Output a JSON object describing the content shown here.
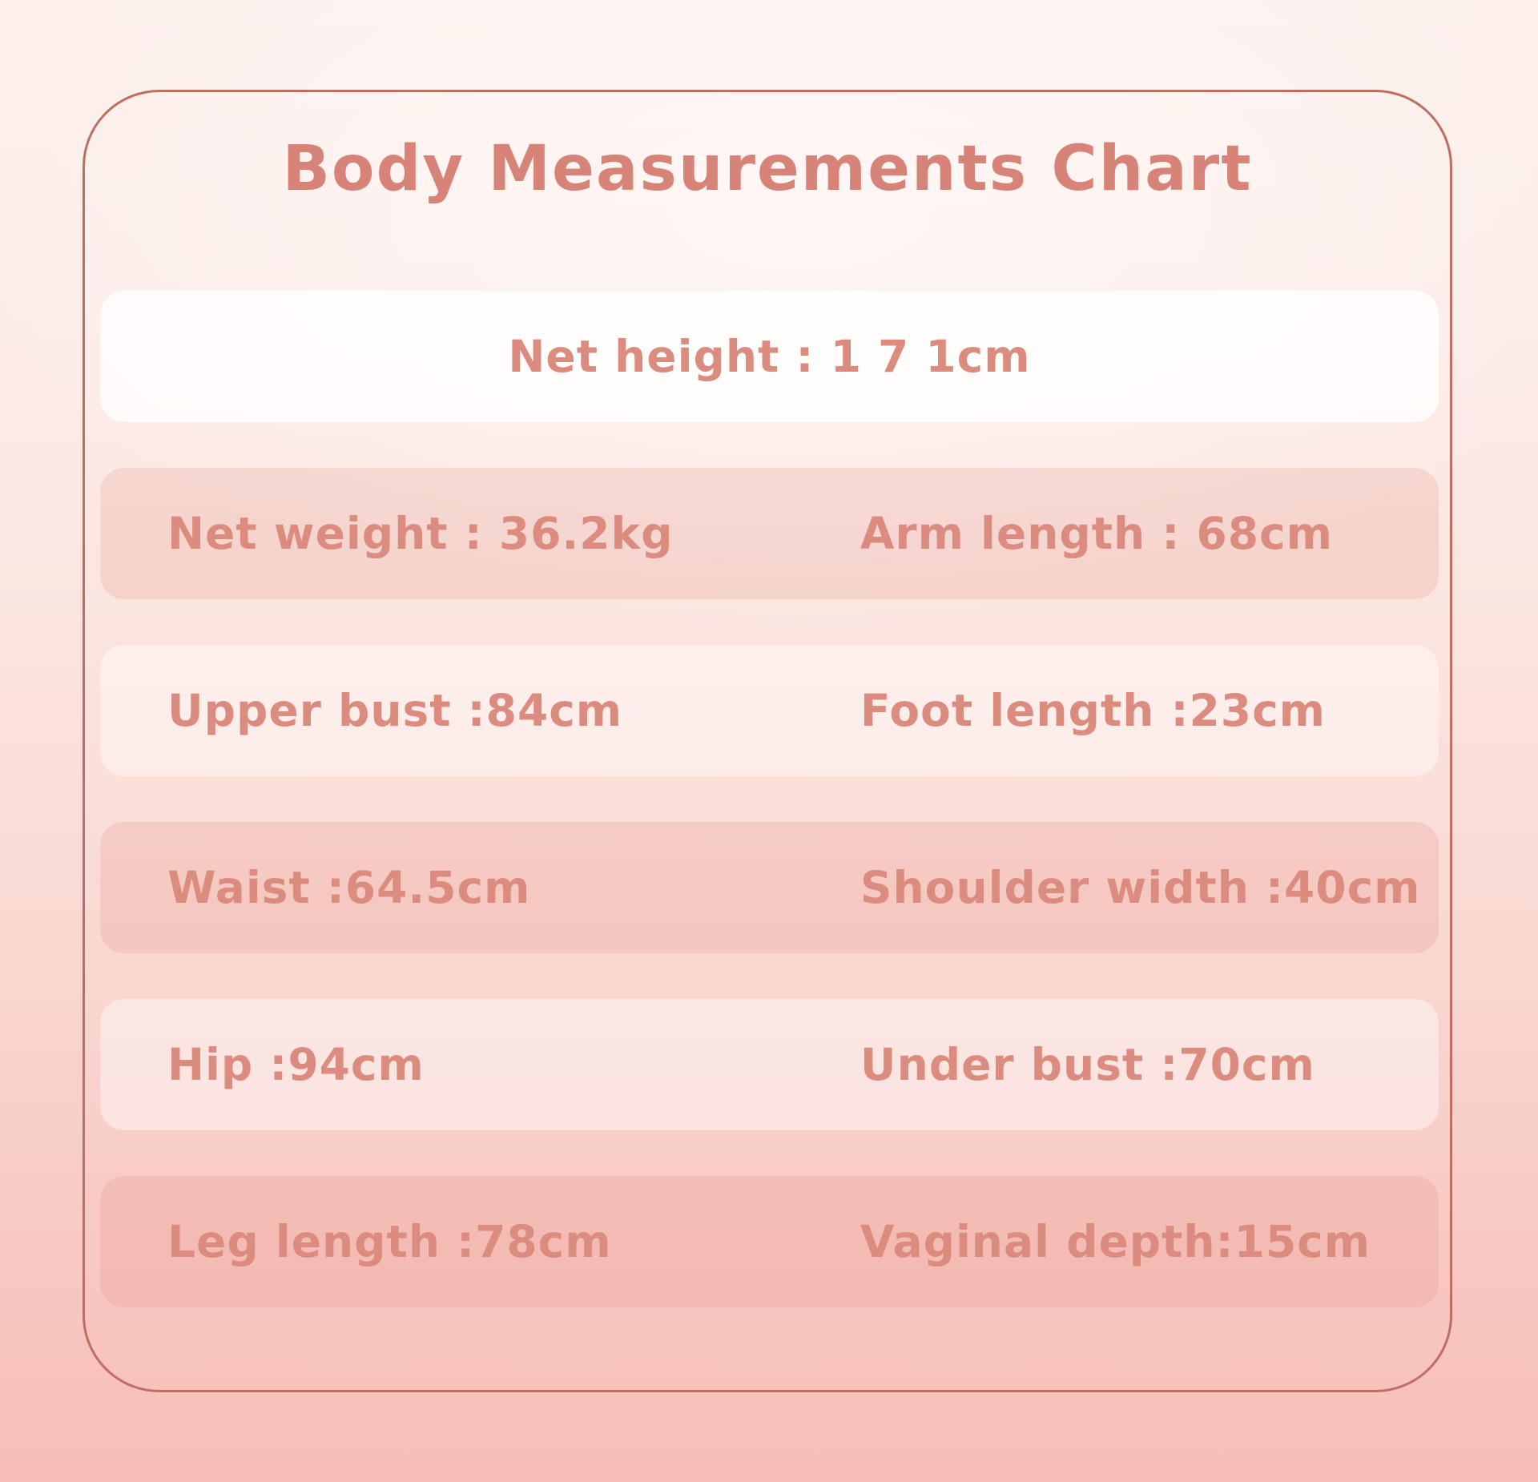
{
  "title": "Body Measurements Chart",
  "colors": {
    "background_top": "#fdf0ec",
    "background_bottom": "#f7beb8",
    "panel_border": "#c06e62",
    "title_text": "#d88378",
    "row_text": "#dc8b7f",
    "band_dark": "rgba(223,128,116,0.18)",
    "band_light": "rgba(255,255,255,0.42)",
    "band_white": "rgba(255,255,255,0.80)"
  },
  "rows": [
    {
      "tone": "white",
      "cells": [
        {
          "text": "Net height : 1 7 1cm",
          "align": "center"
        }
      ]
    },
    {
      "tone": "dark",
      "cells": [
        {
          "text": "Net weight : 36.2kg"
        },
        {
          "text": "Arm length : 68cm"
        }
      ]
    },
    {
      "tone": "light",
      "cells": [
        {
          "text": "Upper bust :84cm"
        },
        {
          "text": "Foot length :23cm"
        }
      ]
    },
    {
      "tone": "dark",
      "cells": [
        {
          "text": "Waist :64.5cm"
        },
        {
          "text": "Shoulder width :40cm"
        }
      ]
    },
    {
      "tone": "light",
      "cells": [
        {
          "text": "Hip :94cm"
        },
        {
          "text": "Under bust :70cm"
        }
      ]
    },
    {
      "tone": "dark",
      "cells": [
        {
          "text": "Leg length :78cm"
        },
        {
          "text": "Vaginal depth:15cm"
        }
      ]
    }
  ],
  "chart_data": {
    "type": "table",
    "title": "Body Measurements Chart",
    "measurements": [
      {
        "label": "Net height",
        "value": 171,
        "unit": "cm"
      },
      {
        "label": "Net weight",
        "value": 36.2,
        "unit": "kg"
      },
      {
        "label": "Arm length",
        "value": 68,
        "unit": "cm"
      },
      {
        "label": "Upper bust",
        "value": 84,
        "unit": "cm"
      },
      {
        "label": "Foot length",
        "value": 23,
        "unit": "cm"
      },
      {
        "label": "Waist",
        "value": 64.5,
        "unit": "cm"
      },
      {
        "label": "Shoulder width",
        "value": 40,
        "unit": "cm"
      },
      {
        "label": "Hip",
        "value": 94,
        "unit": "cm"
      },
      {
        "label": "Under bust",
        "value": 70,
        "unit": "cm"
      },
      {
        "label": "Leg length",
        "value": 78,
        "unit": "cm"
      },
      {
        "label": "Vaginal depth",
        "value": 15,
        "unit": "cm"
      }
    ]
  }
}
